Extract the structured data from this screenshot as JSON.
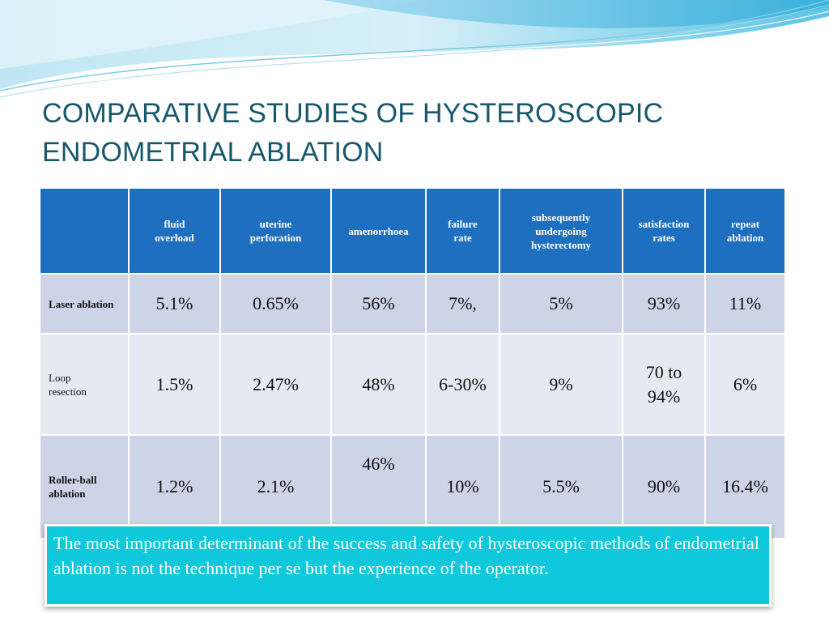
{
  "slide": {
    "title_line1": "COMPARATIVE STUDIES OF HYSTEROSCOPIC",
    "title_line2": "ENDOMETRIAL ABLATION"
  },
  "table": {
    "headers": [
      "",
      "fluid overload",
      "uterine perforation",
      "amenorrhoea",
      "failure rate",
      "subsequently undergoing hysterectomy",
      "satisfaction rates",
      "repeat ablation"
    ],
    "rows": [
      {
        "label": "Laser ablation",
        "cells": [
          "5.1%",
          "0.65%",
          "56%",
          "7%,",
          "5%",
          "93%",
          "11%"
        ]
      },
      {
        "label": "Loop resection",
        "cells": [
          "1.5%",
          "2.47%",
          "48%",
          "6-30%",
          "9%",
          "70 to 94%",
          "6%"
        ]
      },
      {
        "label": "Roller-ball ablation",
        "cells": [
          "1.2%",
          "2.1%",
          "46%",
          "10%",
          "5.5%",
          "90%",
          "16.4%"
        ]
      }
    ]
  },
  "note": {
    "text": "The most important determinant of the success and safety of hysteroscopic methods of endometrial ablation is not the technique per se but the experience of the operator."
  },
  "colors": {
    "header_bg": "#1f6fc1",
    "row_dark": "#cdd4e7",
    "row_light": "#e6e9f2",
    "title": "#17576b",
    "note_bg": "#10c8dc"
  }
}
